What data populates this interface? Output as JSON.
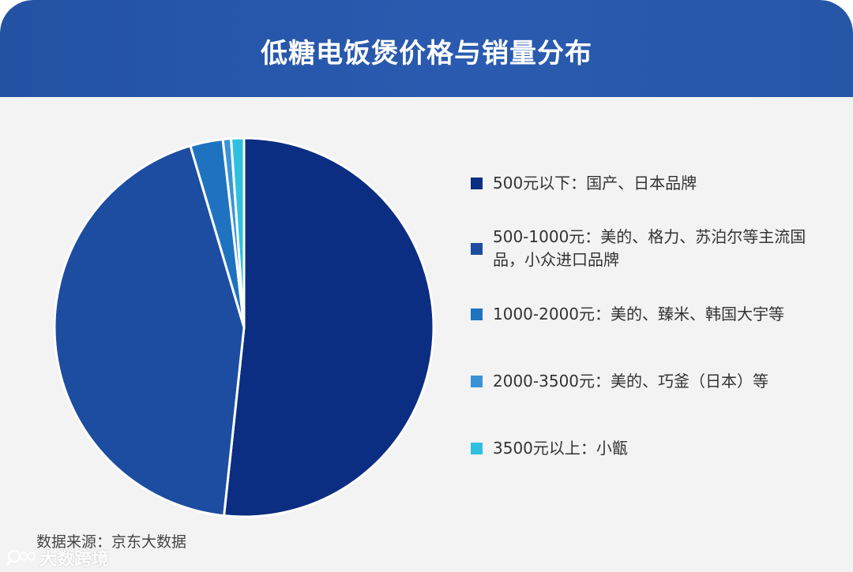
{
  "header": {
    "title": "低糖电饭煲价格与销量分布"
  },
  "chart_data": {
    "type": "pie",
    "title": "低糖电饭煲价格与销量分布",
    "slices": [
      {
        "label": "500元以下：国产、日本品牌",
        "value": 52,
        "color": "#0b2d82"
      },
      {
        "label": "500-1000元：美的、格力、苏泊尔等主流国品，小众进口品牌",
        "value": 44,
        "color": "#1c4da1"
      },
      {
        "label": "1000-2000元：美的、臻米、韩国大宇等",
        "value": 2.8,
        "color": "#1f72c0"
      },
      {
        "label": "2000-3500元：美的、巧釜（日本）等",
        "value": 0.7,
        "color": "#3a93d6"
      },
      {
        "label": "3500元以上：小甑",
        "value": 1.1,
        "color": "#2ec0e0"
      }
    ],
    "start_angle": "top",
    "direction": "clockwise",
    "legend_position": "right"
  },
  "source": {
    "text": "数据来源：京东大数据"
  },
  "watermark": {
    "text": "大数跨境",
    "logo_icon": "magnifier-logo-icon"
  }
}
